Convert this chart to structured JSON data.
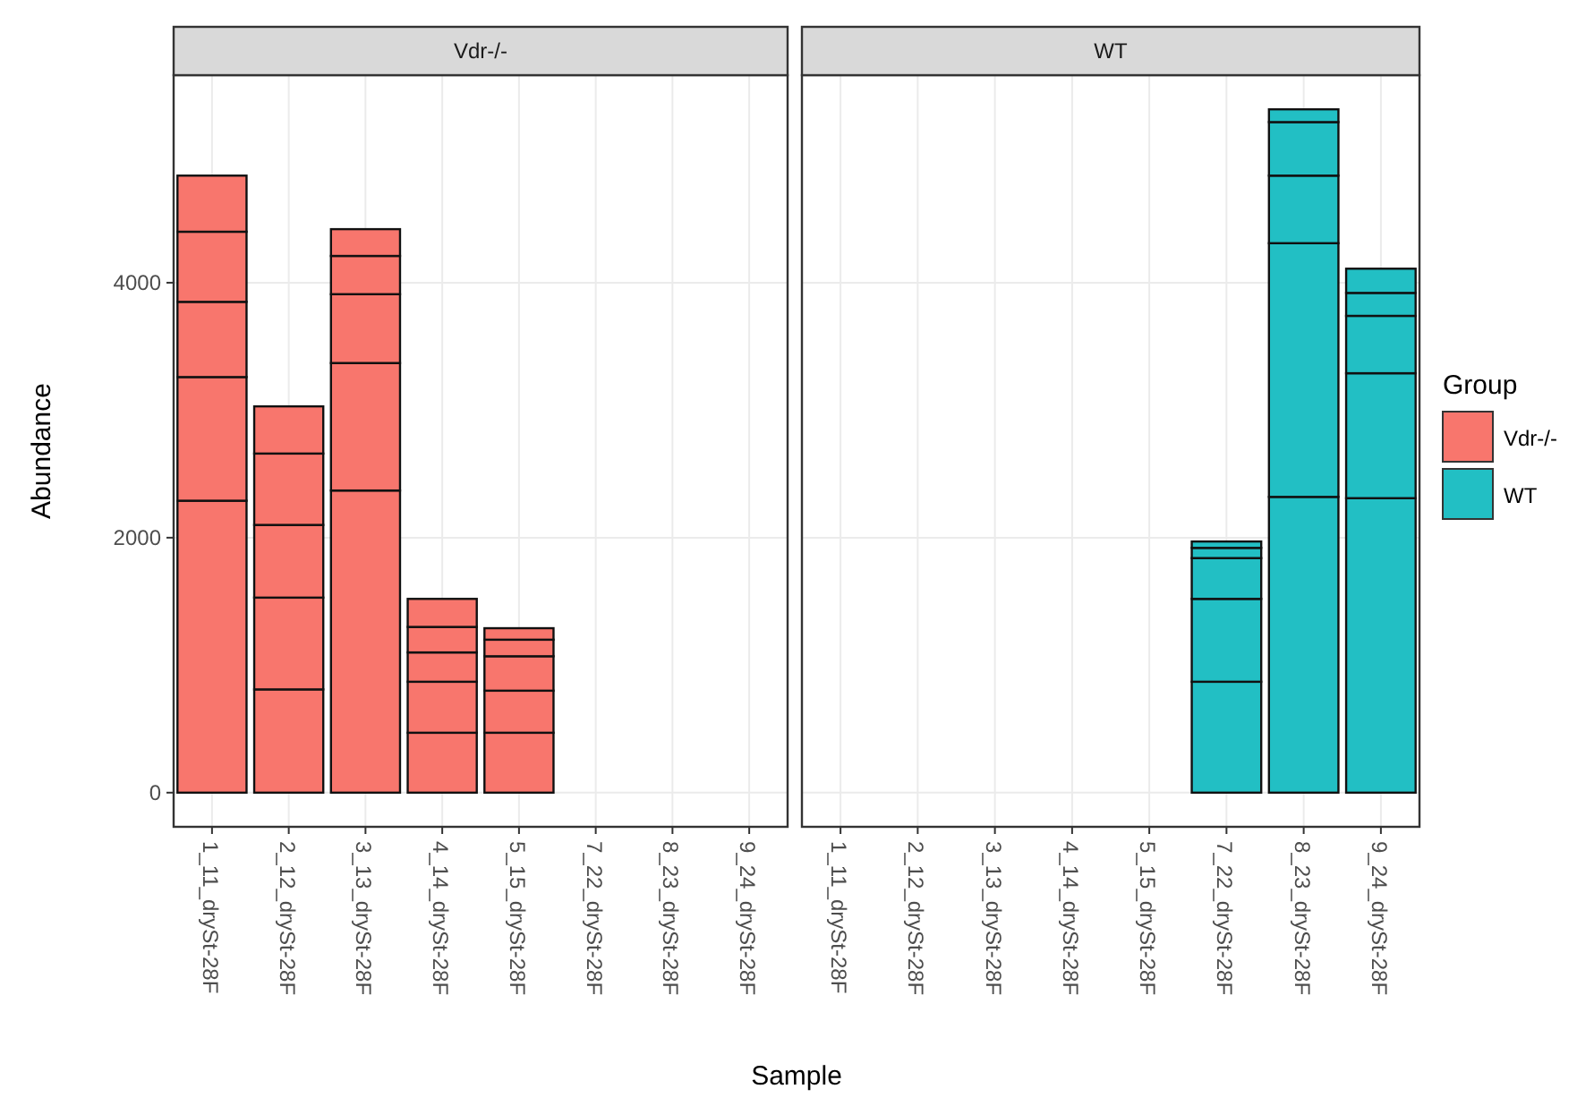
{
  "chart_data": [
    {
      "type": "bar",
      "title": "Vdr-/-",
      "ylabel": "Abundance",
      "xlabel": "Sample",
      "stacked": true,
      "grid": true,
      "categories": [
        "1_11_drySt-28F",
        "2_12_drySt-28F",
        "3_13_drySt-28F",
        "4_14_drySt-28F",
        "5_15_drySt-28F",
        "7_22_drySt-28F",
        "8_23_drySt-28F",
        "9_24_drySt-28F"
      ],
      "ylim": [
        -268,
        5628
      ],
      "yticks": [
        0,
        2000,
        4000
      ],
      "series": [
        {
          "name": "Vdr-/-",
          "color": "#f8766d",
          "values": [
            2290,
            810,
            2370,
            470,
            470,
            null,
            null,
            null
          ]
        },
        {
          "color": "#f8766d",
          "values": [
            970,
            720,
            1000,
            400,
            330,
            null,
            null,
            null
          ]
        },
        {
          "color": "#f8766d",
          "values": [
            590,
            570,
            540,
            230,
            270,
            null,
            null,
            null
          ]
        },
        {
          "color": "#f8766d",
          "values": [
            550,
            560,
            300,
            200,
            130,
            null,
            null,
            null
          ]
        },
        {
          "color": "#f8766d",
          "values": [
            440,
            370,
            210,
            220,
            90,
            null,
            null,
            null
          ]
        }
      ]
    },
    {
      "type": "bar",
      "title": "WT",
      "stacked": true,
      "grid": true,
      "tick_labels": "x",
      "legend": "right",
      "legend_title": "Group",
      "categories": [
        "1_11_drySt-28F",
        "2_12_drySt-28F",
        "3_13_drySt-28F",
        "4_14_drySt-28F",
        "5_15_drySt-28F",
        "7_22_drySt-28F",
        "8_23_drySt-28F",
        "9_24_drySt-28F"
      ],
      "ylim": [
        -268,
        5628
      ],
      "yticks": [
        0,
        2000,
        4000
      ],
      "series": [
        {
          "name": "WT",
          "color": "#22bfc4",
          "values": [
            null,
            null,
            null,
            null,
            null,
            870,
            2320,
            2310
          ]
        },
        {
          "color": "#22bfc4",
          "values": [
            null,
            null,
            null,
            null,
            null,
            650,
            1990,
            980
          ]
        },
        {
          "color": "#22bfc4",
          "values": [
            null,
            null,
            null,
            null,
            null,
            320,
            530,
            450
          ]
        },
        {
          "color": "#22bfc4",
          "values": [
            null,
            null,
            null,
            null,
            null,
            80,
            420,
            180
          ]
        },
        {
          "color": "#22bfc4",
          "values": [
            null,
            null,
            null,
            null,
            null,
            50,
            100,
            190
          ]
        }
      ]
    }
  ]
}
